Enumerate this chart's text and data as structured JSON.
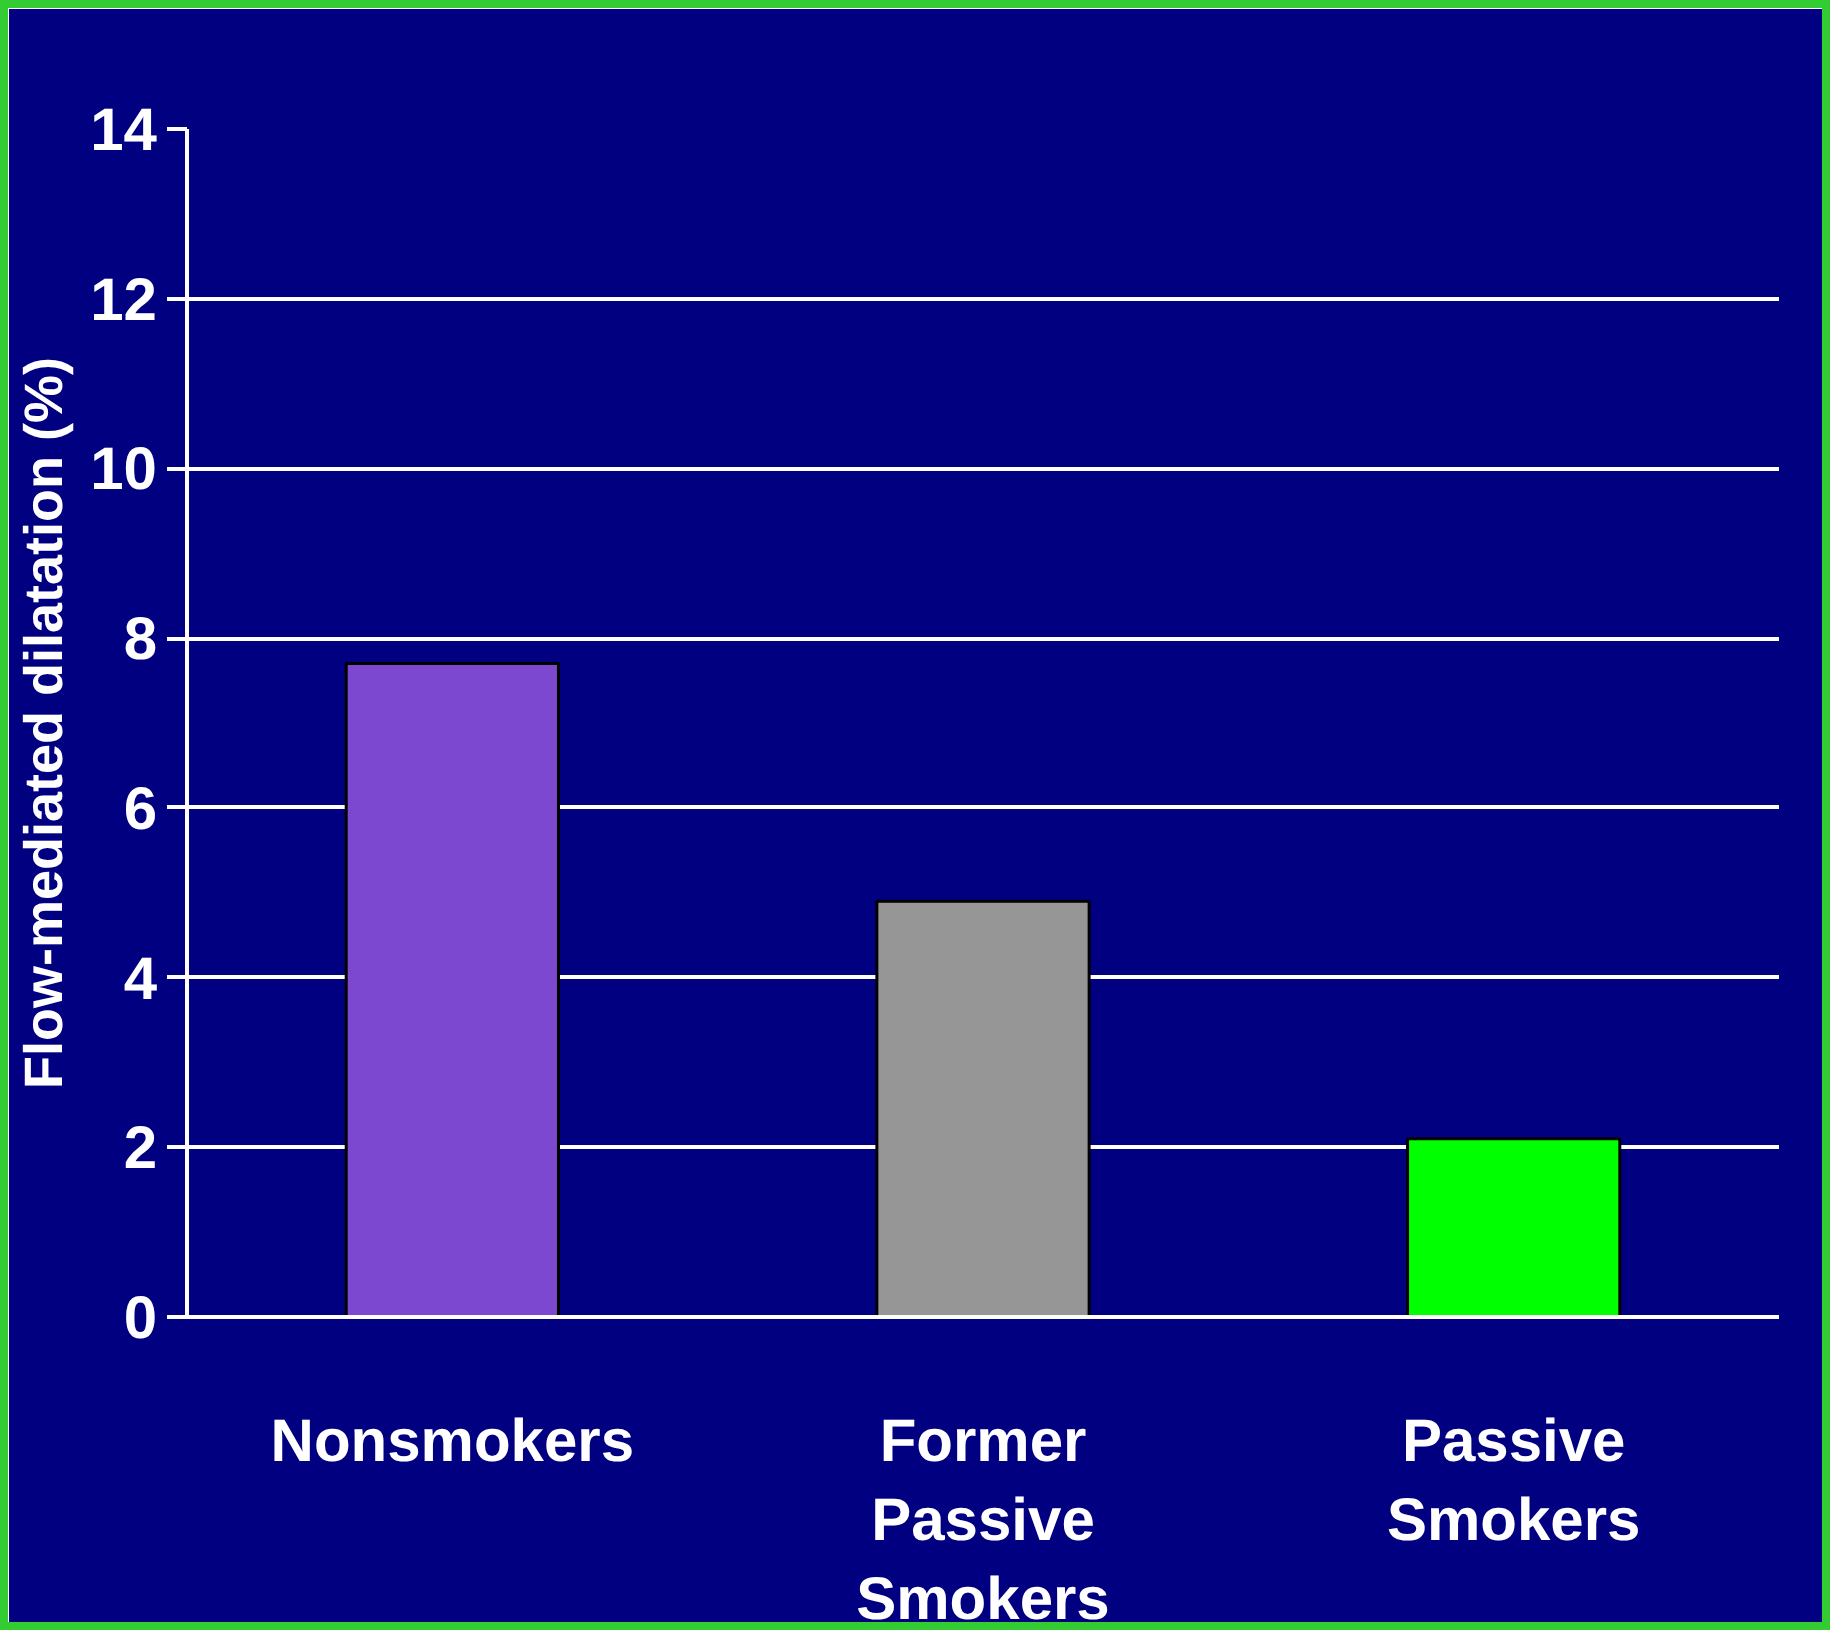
{
  "chart_data": {
    "type": "bar",
    "ylabel": "Flow-mediated dilatation (%)",
    "categories": [
      "Nonsmokers",
      "Former Passive Smokers",
      "Passive Smokers"
    ],
    "values": [
      7.7,
      4.9,
      2.1
    ],
    "colors": [
      "#7b48cf",
      "#969696",
      "#00ff00"
    ],
    "ylim": [
      0,
      14
    ],
    "yticks": [
      0,
      2,
      4,
      6,
      8,
      10,
      12,
      14
    ],
    "grid": "y"
  }
}
